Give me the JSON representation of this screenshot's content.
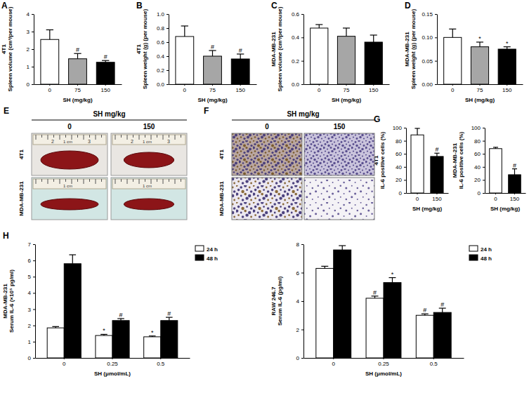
{
  "chart_data": [
    {
      "type": "bar",
      "annotations": [
        "A"
      ],
      "ylabel": [
        "4T1",
        "Spleen volume (cm³/per mouse)"
      ],
      "xlabel": "SH (mg/kg)",
      "categories": [
        "0",
        "75",
        "150"
      ],
      "values": [
        2.55,
        1.45,
        1.25
      ],
      "errors": [
        0.55,
        0.3,
        0.1
      ],
      "colors": [
        "#ffffff",
        "#a6a6a6",
        "#000000"
      ],
      "significance": [
        null,
        "#",
        "#"
      ],
      "ylim": [
        0,
        4
      ],
      "yticks": [
        0,
        1,
        2,
        3,
        4
      ]
    },
    {
      "type": "bar",
      "annotations": [
        "B"
      ],
      "ylabel": [
        "4T1",
        "Spleen weight (g) (per mouse)"
      ],
      "xlabel": "SH (mg/kg)",
      "categories": [
        "0",
        "75",
        "150"
      ],
      "values": [
        0.68,
        0.4,
        0.36
      ],
      "errors": [
        0.15,
        0.08,
        0.07
      ],
      "colors": [
        "#ffffff",
        "#a6a6a6",
        "#000000"
      ],
      "significance": [
        null,
        "#",
        "#"
      ],
      "ylim": [
        0,
        1.0
      ],
      "yticks": [
        {
          "value": 0,
          "label": "0.0"
        },
        {
          "value": 0.2,
          "label": "0.2"
        },
        {
          "value": 0.4,
          "label": "0.4"
        },
        {
          "value": 0.6,
          "label": "0.6"
        },
        {
          "value": 0.8,
          "label": "0.8"
        },
        {
          "value": 1.0,
          "label": "1.0"
        }
      ]
    },
    {
      "type": "bar",
      "annotations": [
        "C"
      ],
      "ylabel": [
        "MDA-MB-231",
        "Spleen volume (cm³/per mouse)"
      ],
      "xlabel": "SH (mg/kg)",
      "categories": [
        "0",
        "75",
        "150"
      ],
      "values": [
        0.48,
        0.41,
        0.36
      ],
      "errors": [
        0.03,
        0.07,
        0.06
      ],
      "colors": [
        "#ffffff",
        "#a6a6a6",
        "#000000"
      ],
      "ylim": [
        0,
        0.6
      ],
      "yticks": [
        {
          "value": 0,
          "label": "0.0"
        },
        {
          "value": 0.2,
          "label": "0.2"
        },
        {
          "value": 0.4,
          "label": "0.4"
        },
        {
          "value": 0.6,
          "label": "0.6"
        }
      ]
    },
    {
      "type": "bar",
      "annotations": [
        "D"
      ],
      "ylabel": [
        "MDA-MB-231",
        "Spleen weight (g) (per mouse)"
      ],
      "xlabel": "SH (mg/kg)",
      "categories": [
        "0",
        "75",
        "150"
      ],
      "values": [
        0.1,
        0.08,
        0.075
      ],
      "errors": [
        0.018,
        0.01,
        0.005
      ],
      "colors": [
        "#ffffff",
        "#a6a6a6",
        "#000000"
      ],
      "significance": [
        null,
        "*",
        "*"
      ],
      "ylim": [
        0,
        0.15
      ],
      "yticks": [
        {
          "value": 0,
          "label": "0.00"
        },
        {
          "value": 0.05,
          "label": "0.05"
        },
        {
          "value": 0.1,
          "label": "0.10"
        },
        {
          "value": 0.15,
          "label": "0.15"
        }
      ]
    },
    {
      "type": "bar",
      "annotations": [
        "G"
      ],
      "ylabel": [
        "4T1",
        "IL-6 positive cells (%)"
      ],
      "xlabel": "SH (mg/kg)",
      "categories": [
        "0",
        "150"
      ],
      "values": [
        89,
        56
      ],
      "errors": [
        10,
        5
      ],
      "colors": [
        "#ffffff",
        "#000000"
      ],
      "significance": [
        null,
        "#"
      ],
      "ylim": [
        0,
        100
      ],
      "yticks": [
        0,
        20,
        40,
        60,
        80,
        100
      ]
    },
    {
      "type": "bar",
      "ylabel": [
        "MDA-MB-231",
        "IL-6 positive cells (%)"
      ],
      "xlabel": "SH (mg/kg)",
      "categories": [
        "0",
        "150"
      ],
      "values": [
        68,
        28
      ],
      "errors": [
        2,
        9
      ],
      "colors": [
        "#ffffff",
        "#000000"
      ],
      "significance": [
        null,
        "#"
      ],
      "ylim": [
        0,
        100
      ],
      "yticks": [
        0,
        20,
        40,
        60,
        80,
        100
      ]
    },
    {
      "type": "bar",
      "annotations": [
        "H"
      ],
      "ylabel": [
        "MDA-MB-231",
        "Serum IL-6 (×10⁵ pg/ml)"
      ],
      "xlabel": "SH (μmol/mL)",
      "categories": [
        "0",
        "0.25",
        "0.5"
      ],
      "legend": "top-right",
      "series": [
        {
          "name": "24 h",
          "color": "#ffffff",
          "values": [
            1.85,
            1.38,
            1.3
          ],
          "errors": [
            0.08,
            0.07,
            0.05
          ],
          "significance": [
            null,
            "*",
            "*"
          ]
        },
        {
          "name": "48 h",
          "color": "#000000",
          "values": [
            5.8,
            2.3,
            2.3
          ],
          "errors": [
            0.55,
            0.12,
            0.2
          ],
          "significance": [
            null,
            "#",
            "#"
          ]
        }
      ],
      "ylim": [
        0,
        7
      ],
      "yticks": [
        0,
        1,
        2,
        3,
        4,
        5,
        6,
        7
      ]
    },
    {
      "type": "bar",
      "ylabel": [
        "RAW 246.7",
        "Serum IL-6 (pg/ml)"
      ],
      "xlabel": "SH (μmol/mL)",
      "categories": [
        "0",
        "0.25",
        "0.5"
      ],
      "legend": "top-right",
      "series": [
        {
          "name": "24 h",
          "color": "#ffffff",
          "values": [
            6.3,
            4.2,
            3.0
          ],
          "errors": [
            0.15,
            0.15,
            0.1
          ],
          "significance": [
            null,
            "#",
            "#"
          ]
        },
        {
          "name": "48 h",
          "color": "#000000",
          "values": [
            7.6,
            5.3,
            3.2
          ],
          "errors": [
            0.3,
            0.35,
            0.3
          ],
          "significance": [
            null,
            "*",
            "#"
          ]
        }
      ],
      "ylim": [
        0,
        8
      ],
      "yticks": [
        0,
        2,
        4,
        6,
        8
      ]
    }
  ],
  "images": [
    {
      "panel": "E",
      "header": "SH mg/kg",
      "columns": [
        "0",
        "150"
      ],
      "rows": [
        "4T1",
        "MDA-MB-231"
      ],
      "ruler_labels": [
        "1 cm",
        "2",
        "3"
      ]
    },
    {
      "panel": "F",
      "header": "SH mg/kg",
      "columns": [
        "0",
        "150"
      ],
      "rows": [
        "4T1",
        "MDA-MB-231"
      ]
    }
  ]
}
